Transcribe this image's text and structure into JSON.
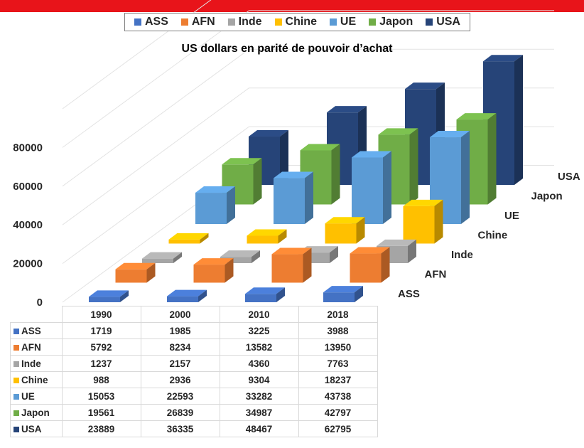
{
  "banner": {
    "color": "#e8141a"
  },
  "chart_data": {
    "type": "bar",
    "subtype": "3d-column-with-data-table",
    "title": "US dollars en parité de pouvoir d’achat",
    "categories": [
      "1990",
      "2000",
      "2010",
      "2018"
    ],
    "series": [
      {
        "name": "ASS",
        "color": "#4472c4",
        "values": [
          1719,
          1985,
          3225,
          3988
        ]
      },
      {
        "name": "AFN",
        "color": "#ed7d31",
        "values": [
          5792,
          8234,
          13582,
          13950
        ]
      },
      {
        "name": "Inde",
        "color": "#a5a5a5",
        "values": [
          1237,
          2157,
          4360,
          7763
        ]
      },
      {
        "name": "Chine",
        "color": "#ffc000",
        "values": [
          988,
          2936,
          9304,
          18237
        ]
      },
      {
        "name": "UE",
        "color": "#5b9bd5",
        "values": [
          15053,
          22593,
          33282,
          43738
        ]
      },
      {
        "name": "Japon",
        "color": "#70ad47",
        "values": [
          19561,
          26839,
          34987,
          42797
        ]
      },
      {
        "name": "USA",
        "color": "#264478",
        "values": [
          23889,
          36335,
          48467,
          62795
        ]
      }
    ],
    "y_ticks": [
      "0",
      "20000",
      "40000",
      "60000",
      "80000"
    ],
    "ylim": [
      0,
      100000
    ],
    "grid": true,
    "legend_position": "top",
    "data_table": true
  }
}
